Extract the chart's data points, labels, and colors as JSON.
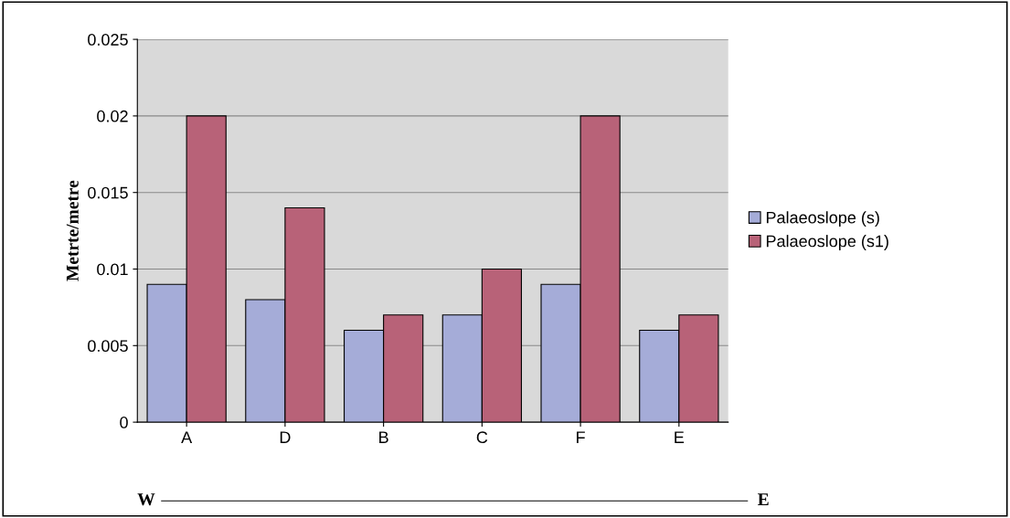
{
  "chart_data": {
    "type": "bar",
    "ylabel": "Metrte/metre",
    "categories": [
      "A",
      "D",
      "B",
      "C",
      "F",
      "E"
    ],
    "series": [
      {
        "name": "Palaeoslope (s)",
        "color": "#a5acd8",
        "values": [
          0.009,
          0.008,
          0.006,
          0.007,
          0.009,
          0.006
        ]
      },
      {
        "name": "Palaeoslope (s1)",
        "color": "#b86278",
        "values": [
          0.02,
          0.014,
          0.007,
          0.01,
          0.02,
          0.007
        ]
      }
    ],
    "ylim": [
      0,
      0.025
    ],
    "yticks": [
      0,
      0.005,
      0.01,
      0.015,
      0.02,
      0.025
    ],
    "grid": "y",
    "legend": "right",
    "annotations": [
      "W",
      "E"
    ]
  }
}
